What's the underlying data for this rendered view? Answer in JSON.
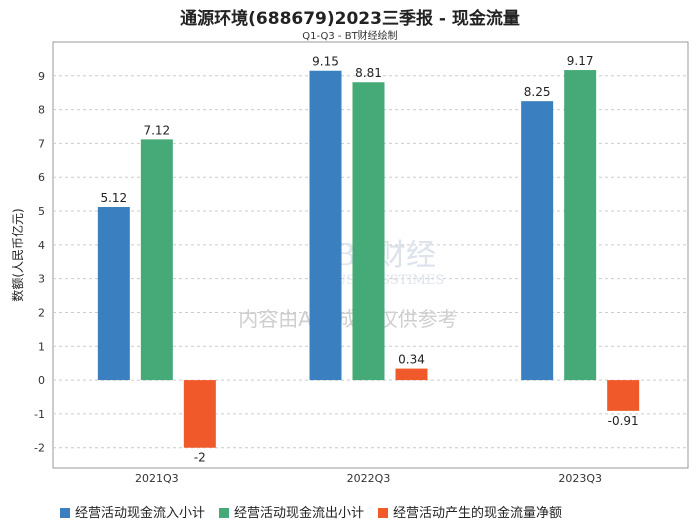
{
  "chart_data": {
    "type": "bar",
    "title": "通源环境(688679)2023三季报 - 现金流量",
    "subtitle": "Q1-Q3 - BT财经绘制",
    "xlabel": "",
    "ylabel": "数额(人民币亿元)",
    "ylim": [
      -2.6,
      10
    ],
    "yticks": [
      -2,
      -1,
      0,
      1,
      2,
      3,
      4,
      5,
      6,
      7,
      8,
      9
    ],
    "grid": true,
    "legend_position": "bottom",
    "categories": [
      "2021Q3",
      "2022Q3",
      "2023Q3"
    ],
    "series": [
      {
        "name": "经营活动现金流入小计",
        "color": "#3a80c0",
        "values": [
          5.12,
          9.15,
          8.25
        ]
      },
      {
        "name": "经营活动现金流出小计",
        "color": "#45aa77",
        "values": [
          7.12,
          8.81,
          9.17
        ]
      },
      {
        "name": "经营活动产生的现金流量净额",
        "color": "#f05a2a",
        "values": [
          -2,
          0.34,
          -0.91
        ]
      }
    ],
    "watermark": [
      "BT财经",
      "BUSINESSTIMES",
      "内容由AI生成，仅供参考"
    ]
  }
}
